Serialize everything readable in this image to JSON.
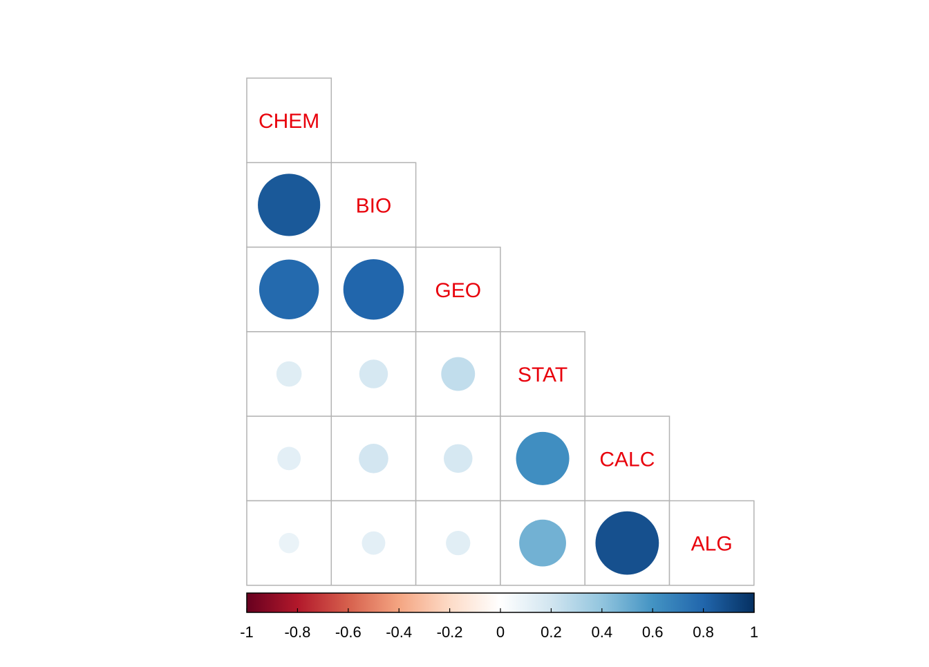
{
  "chart_data": {
    "type": "heatmap",
    "subtype": "correlation-matrix-circles-lower-triangle",
    "variables": [
      "CHEM",
      "BIO",
      "GEO",
      "STAT",
      "CALC",
      "ALG"
    ],
    "label_color": "#e8000b",
    "matrix": [
      [
        1.0,
        0.85,
        0.78,
        0.14,
        0.12,
        0.09
      ],
      [
        0.85,
        1.0,
        0.8,
        0.18,
        0.19,
        0.12
      ],
      [
        0.78,
        0.8,
        1.0,
        0.25,
        0.18,
        0.13
      ],
      [
        0.14,
        0.18,
        0.25,
        1.0,
        0.62,
        0.48
      ],
      [
        0.12,
        0.19,
        0.18,
        0.62,
        1.0,
        0.88
      ],
      [
        0.09,
        0.12,
        0.13,
        0.48,
        0.88,
        1.0
      ]
    ],
    "colorbar": {
      "range": [
        -1,
        1
      ],
      "tick_labels": [
        "-1",
        "-0.8",
        "-0.6",
        "-0.4",
        "-0.2",
        "0",
        "0.2",
        "0.4",
        "0.6",
        "0.8",
        "1"
      ],
      "colors": [
        "#67001F",
        "#B2182B",
        "#D6604D",
        "#F4A582",
        "#FDDBC7",
        "#FFFFFF",
        "#D1E5F0",
        "#92C5DE",
        "#4393C3",
        "#2166AC",
        "#053061"
      ]
    },
    "grid_color": "#b3b3b3"
  }
}
